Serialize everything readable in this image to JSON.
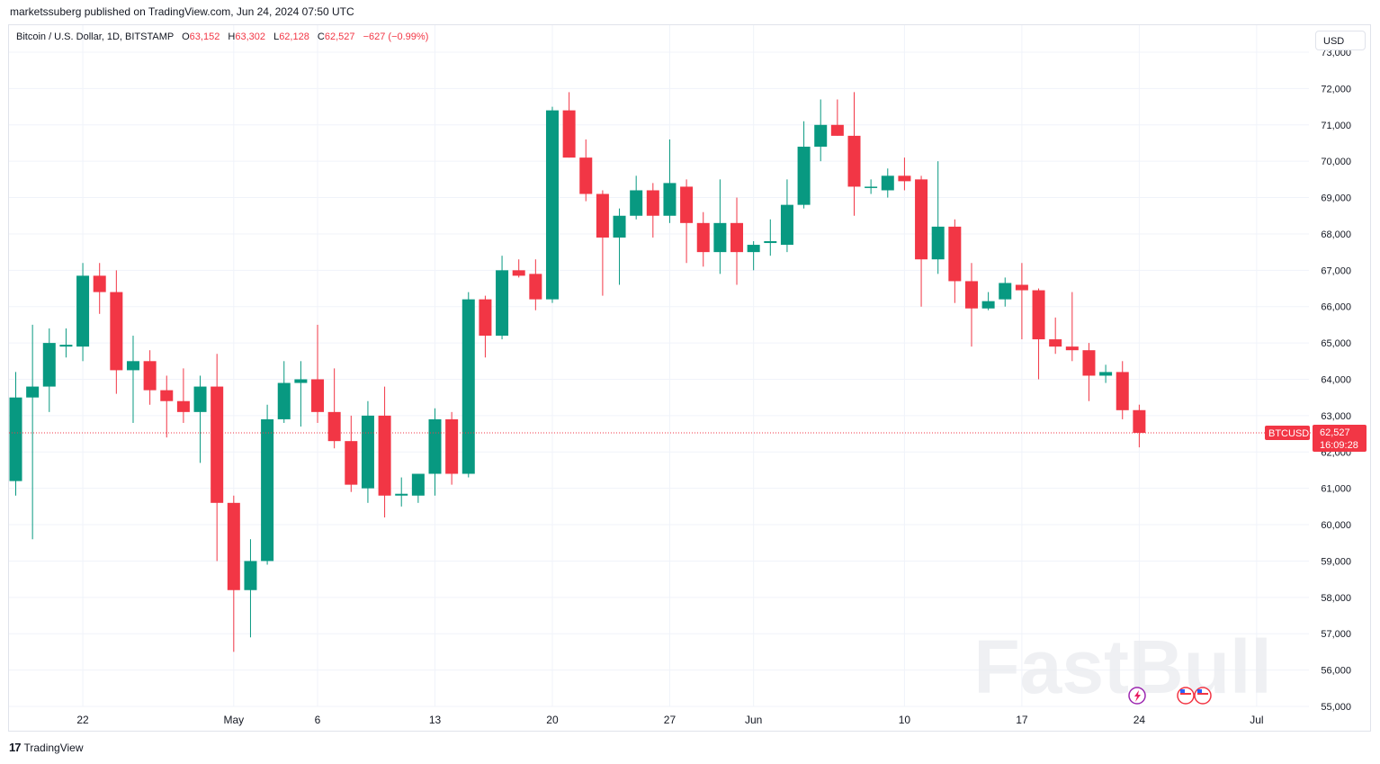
{
  "header": {
    "publisher_line": "marketssuberg published on TradingView.com, Jun 24, 2024 07:50 UTC"
  },
  "legend": {
    "symbol": "Bitcoin / U.S. Dollar, 1D, BITSTAMP",
    "o_label": "O",
    "o_value": "63,152",
    "h_label": "H",
    "h_value": "63,302",
    "l_label": "L",
    "l_value": "62,128",
    "c_label": "C",
    "c_value": "62,527",
    "change": "−627 (−0.99%)"
  },
  "currency_button": "USD",
  "price_tag": {
    "ticker": "BTCUSD",
    "price": "62,527",
    "countdown": "16:09:28"
  },
  "watermark": "FastBull",
  "footer": {
    "brand": "TradingView",
    "logo": "17"
  },
  "colors": {
    "up": "#089981",
    "down": "#f23645",
    "grid": "#f0f3fa",
    "text": "#131722"
  },
  "chart_data": {
    "type": "candlestick",
    "y_range": [
      55000,
      73000
    ],
    "y_ticks": [
      55000,
      56000,
      57000,
      58000,
      59000,
      60000,
      61000,
      62000,
      63000,
      64000,
      65000,
      66000,
      67000,
      68000,
      69000,
      70000,
      71000,
      72000,
      73000
    ],
    "y_tick_labels": [
      "55,000",
      "56,000",
      "57,000",
      "58,000",
      "59,000",
      "60,000",
      "61,000",
      "62,000",
      "63,000",
      "64,000",
      "65,000",
      "66,000",
      "67,000",
      "68,000",
      "69,000",
      "70,000",
      "71,000",
      "72,000",
      "73,000"
    ],
    "x_ticks": [
      {
        "index": 4,
        "label": "22"
      },
      {
        "index": 13,
        "label": "May"
      },
      {
        "index": 18,
        "label": "6"
      },
      {
        "index": 25,
        "label": "13"
      },
      {
        "index": 32,
        "label": "20"
      },
      {
        "index": 39,
        "label": "27"
      },
      {
        "index": 44,
        "label": "Jun"
      },
      {
        "index": 53,
        "label": "10"
      },
      {
        "index": 60,
        "label": "17"
      },
      {
        "index": 67,
        "label": "24"
      },
      {
        "index": 74,
        "label": "Jul"
      }
    ],
    "last_price": 62527,
    "candles": [
      {
        "o": 61200,
        "h": 64200,
        "l": 60800,
        "c": 63500
      },
      {
        "o": 63500,
        "h": 65500,
        "l": 59600,
        "c": 63800
      },
      {
        "o": 63800,
        "h": 65400,
        "l": 63100,
        "c": 65000
      },
      {
        "o": 64900,
        "h": 65400,
        "l": 64600,
        "c": 64950
      },
      {
        "o": 64900,
        "h": 67200,
        "l": 64500,
        "c": 66850
      },
      {
        "o": 66850,
        "h": 67200,
        "l": 65800,
        "c": 66400
      },
      {
        "o": 66400,
        "h": 67000,
        "l": 63600,
        "c": 64250
      },
      {
        "o": 64250,
        "h": 65200,
        "l": 62800,
        "c": 64500
      },
      {
        "o": 64500,
        "h": 64800,
        "l": 63300,
        "c": 63700
      },
      {
        "o": 63700,
        "h": 64100,
        "l": 62400,
        "c": 63400
      },
      {
        "o": 63400,
        "h": 64300,
        "l": 62800,
        "c": 63100
      },
      {
        "o": 63100,
        "h": 64100,
        "l": 61700,
        "c": 63800
      },
      {
        "o": 63800,
        "h": 64700,
        "l": 59000,
        "c": 60600
      },
      {
        "o": 60600,
        "h": 60800,
        "l": 56500,
        "c": 58200
      },
      {
        "o": 58200,
        "h": 59600,
        "l": 56900,
        "c": 59000
      },
      {
        "o": 59000,
        "h": 63300,
        "l": 58900,
        "c": 62900
      },
      {
        "o": 62900,
        "h": 64500,
        "l": 62800,
        "c": 63900
      },
      {
        "o": 63900,
        "h": 64500,
        "l": 62700,
        "c": 64000
      },
      {
        "o": 64000,
        "h": 65500,
        "l": 62800,
        "c": 63100
      },
      {
        "o": 63100,
        "h": 64300,
        "l": 62100,
        "c": 62300
      },
      {
        "o": 62300,
        "h": 63000,
        "l": 60900,
        "c": 61100
      },
      {
        "o": 61000,
        "h": 63400,
        "l": 60600,
        "c": 63000
      },
      {
        "o": 63000,
        "h": 63800,
        "l": 60200,
        "c": 60800
      },
      {
        "o": 60800,
        "h": 61300,
        "l": 60500,
        "c": 60850
      },
      {
        "o": 60800,
        "h": 61400,
        "l": 60600,
        "c": 61400
      },
      {
        "o": 61400,
        "h": 63200,
        "l": 60800,
        "c": 62900
      },
      {
        "o": 62900,
        "h": 63100,
        "l": 61100,
        "c": 61400
      },
      {
        "o": 61400,
        "h": 66400,
        "l": 61300,
        "c": 66200
      },
      {
        "o": 66200,
        "h": 66300,
        "l": 64600,
        "c": 65200
      },
      {
        "o": 65200,
        "h": 67400,
        "l": 65100,
        "c": 67000
      },
      {
        "o": 67000,
        "h": 67300,
        "l": 66800,
        "c": 66850
      },
      {
        "o": 66900,
        "h": 67300,
        "l": 65900,
        "c": 66200
      },
      {
        "o": 66200,
        "h": 71500,
        "l": 66100,
        "c": 71400
      },
      {
        "o": 71400,
        "h": 71900,
        "l": 70100,
        "c": 70100
      },
      {
        "o": 70100,
        "h": 70600,
        "l": 68900,
        "c": 69100
      },
      {
        "o": 69100,
        "h": 69200,
        "l": 66300,
        "c": 67900
      },
      {
        "o": 67900,
        "h": 68700,
        "l": 66600,
        "c": 68500
      },
      {
        "o": 68500,
        "h": 69600,
        "l": 68400,
        "c": 69200
      },
      {
        "o": 69200,
        "h": 69400,
        "l": 67900,
        "c": 68500
      },
      {
        "o": 68500,
        "h": 70600,
        "l": 68300,
        "c": 69400
      },
      {
        "o": 69300,
        "h": 69500,
        "l": 67200,
        "c": 68300
      },
      {
        "o": 68300,
        "h": 68600,
        "l": 67100,
        "c": 67500
      },
      {
        "o": 67500,
        "h": 69500,
        "l": 66900,
        "c": 68300
      },
      {
        "o": 68300,
        "h": 69000,
        "l": 66600,
        "c": 67500
      },
      {
        "o": 67500,
        "h": 67800,
        "l": 67000,
        "c": 67700
      },
      {
        "o": 67750,
        "h": 68400,
        "l": 67400,
        "c": 67800
      },
      {
        "o": 67700,
        "h": 69500,
        "l": 67500,
        "c": 68800
      },
      {
        "o": 68800,
        "h": 71100,
        "l": 68700,
        "c": 70400
      },
      {
        "o": 70400,
        "h": 71700,
        "l": 70000,
        "c": 71000
      },
      {
        "o": 71000,
        "h": 71700,
        "l": 70700,
        "c": 70700
      },
      {
        "o": 70700,
        "h": 71900,
        "l": 68500,
        "c": 69300
      },
      {
        "o": 69300,
        "h": 69500,
        "l": 69100,
        "c": 69300
      },
      {
        "o": 69200,
        "h": 69800,
        "l": 69000,
        "c": 69600
      },
      {
        "o": 69600,
        "h": 70100,
        "l": 69200,
        "c": 69450
      },
      {
        "o": 69500,
        "h": 69600,
        "l": 66000,
        "c": 67300
      },
      {
        "o": 67300,
        "h": 70000,
        "l": 66900,
        "c": 68200
      },
      {
        "o": 68200,
        "h": 68400,
        "l": 66100,
        "c": 66700
      },
      {
        "o": 66700,
        "h": 67200,
        "l": 64900,
        "c": 65950
      },
      {
        "o": 65950,
        "h": 66400,
        "l": 65900,
        "c": 66150
      },
      {
        "o": 66200,
        "h": 66800,
        "l": 66000,
        "c": 66650
      },
      {
        "o": 66600,
        "h": 67200,
        "l": 65100,
        "c": 66450
      },
      {
        "o": 66450,
        "h": 66500,
        "l": 64000,
        "c": 65100
      },
      {
        "o": 65100,
        "h": 65700,
        "l": 64700,
        "c": 64900
      },
      {
        "o": 64900,
        "h": 66400,
        "l": 64500,
        "c": 64800
      },
      {
        "o": 64800,
        "h": 65000,
        "l": 63400,
        "c": 64100
      },
      {
        "o": 64100,
        "h": 64400,
        "l": 63900,
        "c": 64200
      },
      {
        "o": 64200,
        "h": 64500,
        "l": 62900,
        "c": 63150
      },
      {
        "o": 63152,
        "h": 63302,
        "l": 62128,
        "c": 62527
      }
    ]
  }
}
